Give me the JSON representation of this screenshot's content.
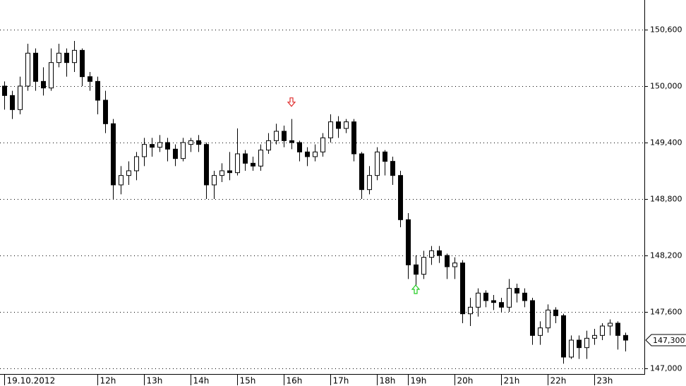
{
  "chart_data": {
    "type": "candlestick",
    "categories": [
      "19.10.2012",
      null,
      null,
      null,
      null,
      null,
      null,
      null,
      null,
      null,
      null,
      null,
      "12h",
      null,
      null,
      null,
      null,
      null,
      "13h",
      null,
      null,
      null,
      null,
      null,
      "14h",
      null,
      null,
      null,
      null,
      null,
      "15h",
      null,
      null,
      null,
      null,
      null,
      "16h",
      null,
      null,
      null,
      null,
      null,
      "17h",
      null,
      null,
      null,
      null,
      null,
      "18h",
      null,
      null,
      null,
      "19h",
      null,
      null,
      null,
      null,
      null,
      "20h",
      null,
      null,
      null,
      null,
      null,
      "21h",
      null,
      null,
      null,
      null,
      null,
      "22h",
      null,
      null,
      null,
      null,
      null,
      "23h",
      null,
      null,
      null,
      null
    ],
    "open": [
      150000,
      149900,
      149750,
      150000,
      150350,
      150050,
      149980,
      150250,
      150350,
      150250,
      150380,
      150100,
      150050,
      149850,
      149600,
      148950,
      149050,
      149100,
      149250,
      149380,
      149350,
      149400,
      149330,
      149230,
      149380,
      149420,
      149380,
      148950,
      149050,
      149100,
      149080,
      149280,
      149180,
      149150,
      149320,
      149420,
      149520,
      149420,
      149400,
      149300,
      149250,
      149300,
      149450,
      149620,
      149550,
      149620,
      149280,
      148900,
      149050,
      149300,
      149200,
      149050,
      148580,
      148100,
      148000,
      148180,
      148250,
      148200,
      148080,
      148120,
      147580,
      147650,
      147800,
      147720,
      147700,
      147650,
      147850,
      147800,
      147720,
      147350,
      147430,
      147620,
      147560,
      147120,
      147300,
      147220,
      147320,
      147350,
      147450,
      147480,
      147350
    ],
    "high": [
      150050,
      149950,
      150100,
      150450,
      150400,
      150200,
      150400,
      150450,
      150400,
      150480,
      150400,
      150150,
      150100,
      149950,
      149650,
      149150,
      149200,
      149300,
      149450,
      149450,
      149480,
      149450,
      149380,
      149450,
      149450,
      149480,
      149400,
      149100,
      149180,
      149300,
      149550,
      149320,
      149250,
      149380,
      149500,
      149600,
      149580,
      149650,
      149420,
      149350,
      149380,
      149500,
      149700,
      149680,
      149650,
      149650,
      149300,
      149150,
      149350,
      149320,
      149250,
      149100,
      148650,
      148200,
      148250,
      148300,
      148300,
      148220,
      148180,
      148150,
      147750,
      147850,
      147830,
      147780,
      147750,
      147950,
      147900,
      147850,
      147750,
      147500,
      147680,
      147650,
      147580,
      147350,
      147350,
      147400,
      147420,
      147480,
      147520,
      147500,
      147380
    ],
    "low": [
      149750,
      149650,
      149700,
      149950,
      149950,
      149900,
      149950,
      150200,
      150100,
      150150,
      150000,
      149950,
      149700,
      149500,
      148800,
      148850,
      148950,
      149000,
      149150,
      149250,
      149300,
      149200,
      149150,
      149200,
      149300,
      149300,
      148800,
      148800,
      148980,
      149000,
      149050,
      149100,
      149100,
      149100,
      149280,
      149380,
      149350,
      149330,
      149200,
      149150,
      149200,
      149250,
      149400,
      149450,
      149500,
      149200,
      148800,
      148850,
      149000,
      149050,
      148950,
      148500,
      147950,
      147850,
      147950,
      148100,
      148120,
      147950,
      147950,
      147480,
      147450,
      147550,
      147650,
      147620,
      147600,
      147600,
      147700,
      147650,
      147250,
      147250,
      147380,
      147480,
      147050,
      147100,
      147100,
      147100,
      147250,
      147300,
      147350,
      147200,
      147180
    ],
    "close": [
      149900,
      149750,
      150000,
      150350,
      150050,
      149980,
      150250,
      150350,
      150250,
      150380,
      150100,
      150050,
      149850,
      149600,
      148950,
      149050,
      149100,
      149250,
      149380,
      149350,
      149400,
      149330,
      149230,
      149400,
      149420,
      149380,
      148950,
      149050,
      149100,
      149080,
      149280,
      149180,
      149150,
      149320,
      149420,
      149520,
      149420,
      149400,
      149300,
      149250,
      149300,
      149450,
      149620,
      149550,
      149620,
      149280,
      148900,
      149050,
      149300,
      149200,
      149050,
      148580,
      148100,
      148000,
      148180,
      148250,
      148200,
      148080,
      148120,
      147580,
      147650,
      147800,
      147720,
      147700,
      147650,
      147850,
      147800,
      147720,
      147350,
      147430,
      147620,
      147560,
      147120,
      147300,
      147220,
      147320,
      147350,
      147450,
      147480,
      147350,
      147300
    ],
    "up_color": "#ffffff",
    "down_color": "#000000",
    "ylim": [
      146940,
      150915
    ],
    "yticks": [
      {
        "value": 147000,
        "label": "147,000"
      },
      {
        "value": 147600,
        "label": "147,600"
      },
      {
        "value": 148200,
        "label": "148,200"
      },
      {
        "value": 148800,
        "label": "148,800"
      },
      {
        "value": 149400,
        "label": "149,400"
      },
      {
        "value": 150000,
        "label": "150,000"
      },
      {
        "value": 150600,
        "label": "150,600"
      }
    ],
    "grid": true,
    "last_price": {
      "value": 147300,
      "label": "147,300"
    },
    "markers": [
      {
        "index": 37,
        "value": 149830,
        "kind": "down",
        "color": "#e03030"
      },
      {
        "index": 53,
        "value": 147840,
        "kind": "up",
        "color": "#22cc22"
      }
    ]
  }
}
